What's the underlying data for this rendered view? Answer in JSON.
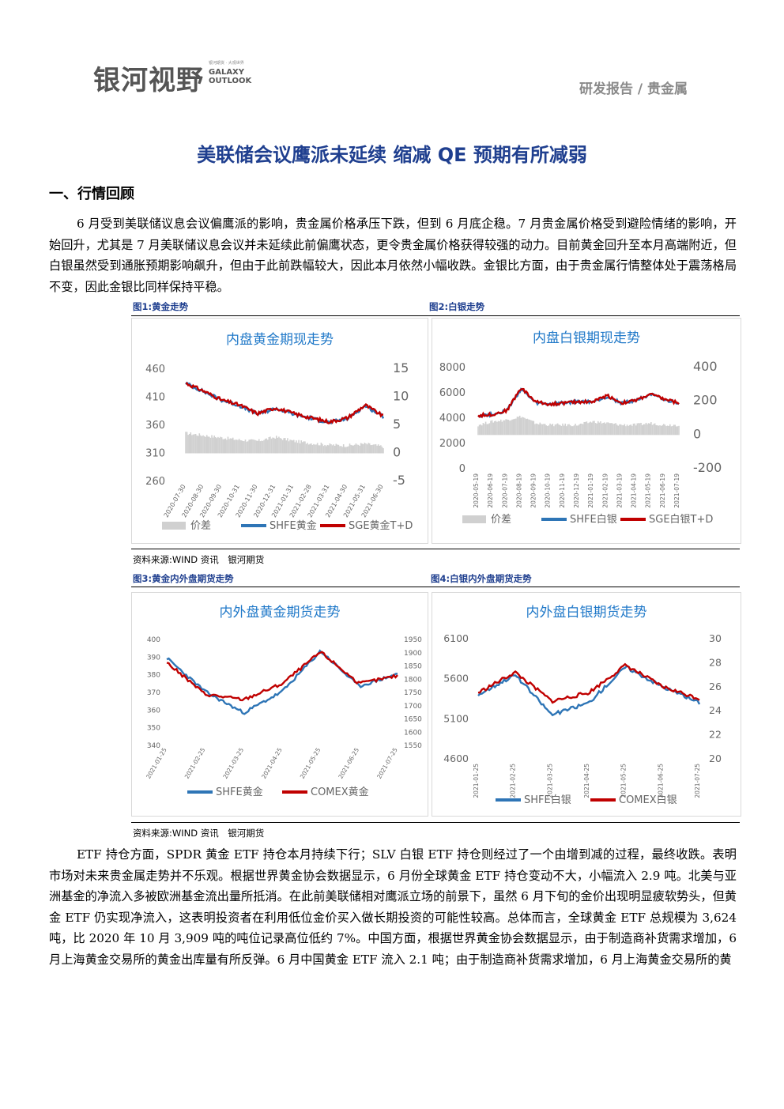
{
  "header": {
    "logo_cn": "银河视野",
    "logo_en_1": "GALAXY",
    "logo_en_2": "OUTLOOK",
    "logo_small": "银河期货 · 大观世界",
    "report_tag": "研发报告 / 贵金属"
  },
  "title": "美联储会议鹰派未延续 缩减 QE 预期有所减弱",
  "section1": "一、行情回顾",
  "para1": "6 月受到美联储议息会议偏鹰派的影响，贵金属价格承压下跌，但到 6 月底企稳。7 月贵金属价格受到避险情绪的影响，开始回升，尤其是 7 月美联储议息会议并未延续此前偏鹰状态，更令贵金属价格获得较强的动力。目前黄金回升至本月高端附近，但白银虽然受到通胀预期影响飙升，但由于此前跌幅较大，因此本月依然小幅收跌。金银比方面，由于贵金属行情整体处于震荡格局不变，因此金银比同样保持平稳。",
  "fig1_label": "图1:黄金走势",
  "fig2_label": "图2:白银走势",
  "fig3_label": "图3:黄金内外盘期货走势",
  "fig4_label": "图4:白银内外盘期货走势",
  "source1": "资料来源:WIND 资讯　银河期货",
  "source2": "资料来源:WIND 资讯　银河期货",
  "para2": "ETF 持仓方面，SPDR 黄金 ETF 持仓本月持续下行；SLV 白银 ETF 持仓则经过了一个由增到减的过程，最终收跌。表明市场对未来贵金属走势并不乐观。根据世界黄金协会数据显示，6 月份全球黄金 ETF 持仓变动不大，小幅流入 2.9 吨。北美与亚洲基金的净流入多被欧洲基金流出量所抵消。在此前美联储相对鹰派立场的前景下，虽然 6 月下旬的金价出现明显疲软势头，但黄金 ETF 仍实现净流入，这表明投资者在利用低位金价买入做长期投资的可能性较高。总体而言，全球黄金 ETF 总规模为 3,624 吨，比 2020 年 10 月 3,909 吨的吨位记录高位低约 7%。中国方面，根据世界黄金协会数据显示，由于制造商补货需求增加，6 月上海黄金交易所的黄金出库量有所反弹。6 月中国黄金 ETF 流入 2.1 吨；由于制造商补货需求增加，6 月上海黄金交易所的黄",
  "colors": {
    "red": "#c00000",
    "blue": "#2e75b6",
    "gray": "#d0d0d0",
    "title_blue": "#1f78c8",
    "heading_blue": "#1f3f8f"
  },
  "chart_data": [
    {
      "type": "line",
      "title": "内盘黄金期现走势",
      "x": [
        "2020-07-30",
        "2020-08-30",
        "2020-09-30",
        "2020-10-31",
        "2020-11-30",
        "2020-12-31",
        "2021-01-31",
        "2021-02-28",
        "2021-03-31",
        "2021-04-30",
        "2021-05-31",
        "2021-06-30"
      ],
      "ylim": [
        260,
        460
      ],
      "y_ticks": [
        "460",
        "410",
        "360",
        "310",
        "260"
      ],
      "y2lim": [
        -5,
        15
      ],
      "y2_ticks": [
        "15",
        "10",
        "5",
        "0",
        "-5"
      ],
      "series": [
        {
          "name": "价差",
          "axis": "right",
          "kind": "area",
          "values": [
            3.6,
            3.2,
            2.8,
            2.4,
            2.2,
            2.9,
            2.2,
            1.8,
            1.5,
            1.4,
            1.7,
            1.2
          ]
        },
        {
          "name": "SHFE黄金",
          "axis": "left",
          "values": [
            435,
            420,
            405,
            395,
            380,
            390,
            380,
            372,
            365,
            372,
            395,
            375
          ]
        },
        {
          "name": "SGE黄金T+D",
          "axis": "left",
          "values": [
            435,
            421,
            405,
            396,
            381,
            391,
            381,
            373,
            366,
            373,
            396,
            376
          ]
        }
      ],
      "legend_position": "bottom"
    },
    {
      "type": "line",
      "title": "内盘白银期现走势",
      "x": [
        "2020-05-19",
        "2020-06-19",
        "2020-07-19",
        "2020-08-19",
        "2020-09-19",
        "2020-10-19",
        "2020-11-19",
        "2020-12-19",
        "2021-01-19",
        "2021-02-19",
        "2021-03-19",
        "2021-04-19",
        "2021-05-19",
        "2021-06-19",
        "2021-07-19"
      ],
      "ylim": [
        0,
        8000
      ],
      "y_ticks": [
        "8000",
        "6000",
        "4000",
        "2000",
        "0"
      ],
      "y2lim": [
        -200,
        400
      ],
      "y2_ticks": [
        "400",
        "200",
        "0",
        "-200"
      ],
      "series": [
        {
          "name": "价差",
          "axis": "right",
          "kind": "area",
          "values": [
            60,
            80,
            90,
            110,
            70,
            60,
            60,
            60,
            80,
            70,
            60,
            60,
            70,
            60,
            60
          ]
        },
        {
          "name": "SHFE白银",
          "axis": "left",
          "values": [
            4200,
            4300,
            4600,
            6300,
            5200,
            5100,
            5200,
            5300,
            5300,
            5700,
            5200,
            5400,
            5900,
            5400,
            5200
          ]
        },
        {
          "name": "SGE白银T+D",
          "axis": "left",
          "values": [
            4200,
            4300,
            4600,
            6400,
            5300,
            5100,
            5200,
            5300,
            5300,
            5800,
            5200,
            5400,
            5900,
            5500,
            5200
          ]
        }
      ],
      "legend_position": "bottom"
    },
    {
      "type": "line",
      "title": "内外盘黄金期货走势",
      "x": [
        "2021-01-25",
        "2021-02-25",
        "2021-03-25",
        "2021-04-25",
        "2021-05-25",
        "2021-06-25",
        "2021-07-25"
      ],
      "ylim": [
        340,
        400
      ],
      "y_ticks": [
        "400",
        "390",
        "380",
        "370",
        "360",
        "350",
        "340"
      ],
      "y2lim": [
        1550,
        1950
      ],
      "y2_ticks": [
        "1950",
        "1900",
        "1850",
        "1800",
        "1750",
        "1700",
        "1650",
        "1600",
        "1550"
      ],
      "series": [
        {
          "name": "SHFE黄金",
          "axis": "left",
          "values": [
            389,
            370,
            358,
            370,
            393,
            373,
            380
          ]
        },
        {
          "name": "COMEX黄金",
          "axis": "right",
          "values": [
            1860,
            1740,
            1720,
            1780,
            1900,
            1780,
            1810
          ]
        }
      ],
      "legend_position": "bottom"
    },
    {
      "type": "line",
      "title": "内外盘白银期货走势",
      "x": [
        "2021-01-25",
        "2021-02-25",
        "2021-03-25",
        "2021-04-25",
        "2021-05-25",
        "2021-06-25",
        "2021-07-25"
      ],
      "ylim": [
        4600,
        6100
      ],
      "y_ticks": [
        "6100",
        "5600",
        "5100",
        "4600"
      ],
      "y2lim": [
        20,
        30
      ],
      "y2_ticks": [
        "30",
        "28",
        "26",
        "24",
        "22",
        "20"
      ],
      "series": [
        {
          "name": "SHFE白银",
          "axis": "left",
          "values": [
            5400,
            5650,
            5150,
            5300,
            5750,
            5500,
            5300
          ]
        },
        {
          "name": "COMEX白银",
          "axis": "right",
          "values": [
            25.5,
            27.2,
            24.8,
            25.5,
            27.8,
            26.0,
            25.0
          ]
        }
      ],
      "legend_position": "bottom"
    }
  ]
}
